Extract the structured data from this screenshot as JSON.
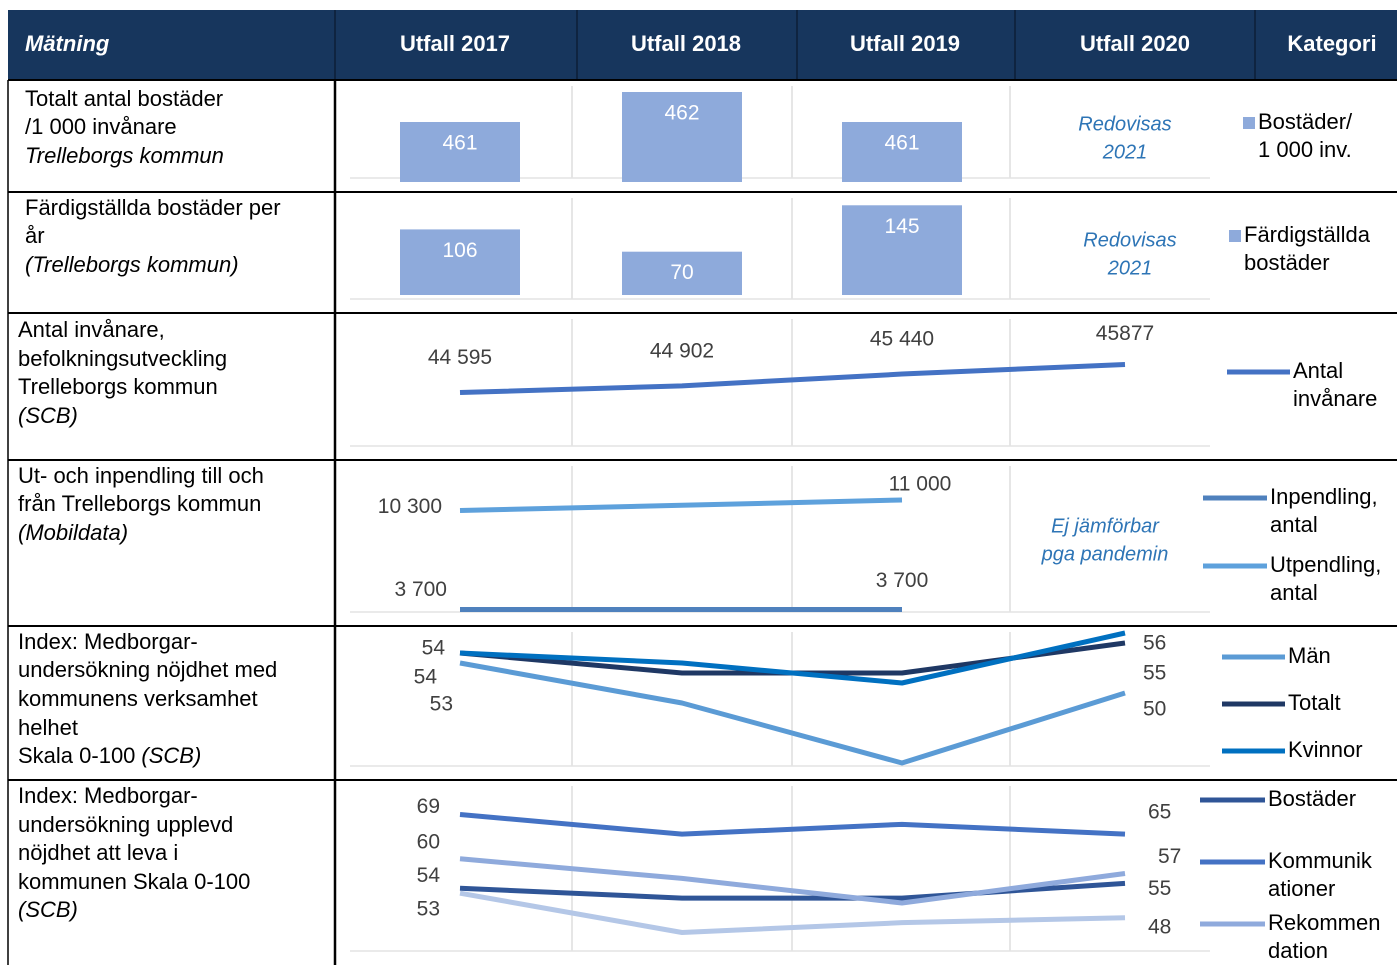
{
  "table": {
    "header": [
      "Mätning",
      "Utfall 2017",
      "Utfall 2018",
      "Utfall 2019",
      "Utfall 2020",
      "Kategori"
    ],
    "rows": [
      {
        "label": [
          "Totalt antal bostäder",
          "/1 000 invånare",
          "Trelleborgs kommun"
        ],
        "chart": {
          "type": "bar",
          "ylim": [
            459,
            462.3
          ],
          "series": [
            {
              "name": [
                "Bostäder/",
                "1 000 inv."
              ],
              "color": "#8eaadb",
              "values": [
                461,
                462,
                461
              ]
            }
          ]
        },
        "note": [
          "Redovisas",
          "2021"
        ]
      },
      {
        "label": [
          "Färdigställda bostäder per",
          "år",
          "(Trelleborgs kommun)"
        ],
        "chart": {
          "type": "bar",
          "ylim": [
            0,
            160
          ],
          "series": [
            {
              "name": [
                "Färdigställda",
                "bostäder"
              ],
              "color": "#8eaadb",
              "values": [
                106,
                70,
                145
              ]
            }
          ]
        },
        "note": [
          "Redovisas",
          "2021"
        ]
      },
      {
        "label": [
          "Antal invånare,",
          "befolkningsutveckling",
          "Trelleborgs kommun",
          "(SCB)"
        ],
        "chart": {
          "type": "line",
          "ylim": [
            42200,
            48000
          ],
          "series": [
            {
              "name": [
                "Antal",
                "invånare"
              ],
              "color": "#4472c4",
              "values": [
                44595,
                44902,
                45440,
                45877
              ],
              "value_labels": [
                "44 595",
                "44 902",
                "45 440",
                "45877"
              ]
            }
          ]
        }
      },
      {
        "label": [
          "Ut- och inpendling till och",
          "från Trelleborgs kommun",
          "(Mobildata)"
        ],
        "chart": {
          "type": "line",
          "ylim": [
            3000,
            13000
          ],
          "series": [
            {
              "name": [
                "Inpendling,",
                "antal"
              ],
              "color": "#4f81bd",
              "values": [
                3700,
                3700,
                3700
              ],
              "value_labels": [
                "3 700",
                null,
                "3 700"
              ]
            },
            {
              "name": [
                "Utpendling,",
                "antal"
              ],
              "color": "#5ea1dc",
              "values": [
                10300,
                10650,
                11000
              ],
              "value_labels": [
                "10 300",
                null,
                "11 000"
              ]
            }
          ]
        },
        "note": [
          "Ej jämförbar",
          "pga pandemin"
        ]
      },
      {
        "label": [
          "Index: Medborgar-",
          "undersökning nöjdhet med",
          "kommunens verksamhet",
          "helhet",
          "Skala 0-100",
          "(SCB)"
        ],
        "chart": {
          "type": "line",
          "ylim": [
            41.5,
            56.5
          ],
          "series": [
            {
              "name": [
                "Män"
              ],
              "color": "#5b9bd5",
              "values": [
                53,
                49,
                43,
                50
              ]
            },
            {
              "name": [
                "Totalt"
              ],
              "color": "#1f3864",
              "values": [
                54,
                52,
                52,
                55
              ]
            },
            {
              "name": [
                "Kvinnor"
              ],
              "color": "#0070c0",
              "values": [
                54,
                53,
                51,
                56
              ]
            }
          ]
        }
      },
      {
        "label": [
          "Index: Medborgar-",
          "undersökning upplevd",
          "nöjdhet att leva i",
          "kommunen Skala 0-100",
          "(SCB)"
        ],
        "chart": {
          "type": "line",
          "ylim": [
            39,
            75
          ],
          "series": [
            {
              "name": [
                "Bostäder"
              ],
              "color": "#2f5597",
              "values": [
                54,
                52,
                52,
                55
              ]
            },
            {
              "name": [
                "Kommunik",
                "ationer"
              ],
              "color": "#4472c4",
              "values": [
                69,
                65,
                67,
                65
              ]
            },
            {
              "name": [
                "Rekommen",
                "dation"
              ],
              "color": "#8faadc",
              "values": [
                60,
                56,
                51,
                57
              ]
            },
            {
              "color": "#b4c7e7",
              "values": [
                53,
                45,
                47,
                48
              ]
            }
          ]
        }
      }
    ]
  }
}
